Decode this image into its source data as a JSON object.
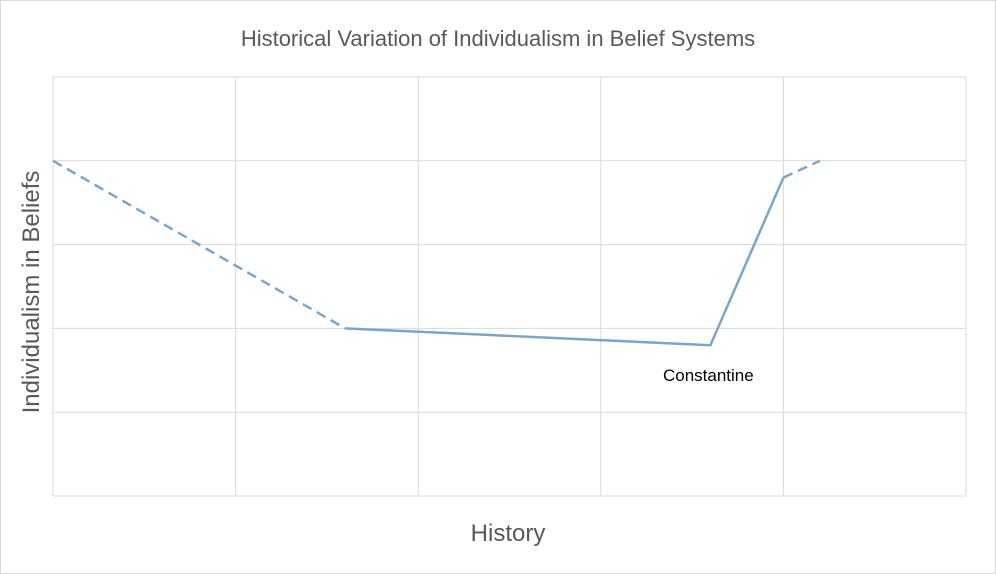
{
  "chart_data": {
    "type": "line",
    "title": "Historical Variation of Individualism in Belief Systems",
    "xlabel": "History",
    "ylabel": "Individualism in Beliefs",
    "xlim": [
      0,
      5
    ],
    "ylim": [
      0,
      5
    ],
    "grid": true,
    "series": [
      {
        "style": "dashed",
        "color": "#7aa6cc",
        "points": [
          [
            0,
            4
          ],
          [
            1.6,
            2
          ]
        ]
      },
      {
        "style": "solid",
        "color": "#7aa6cc",
        "points": [
          [
            1.6,
            2
          ],
          [
            3.6,
            1.8
          ],
          [
            4.0,
            3.8
          ]
        ]
      },
      {
        "style": "dashed",
        "color": "#7aa6cc",
        "points": [
          [
            4.0,
            3.8
          ],
          [
            4.2,
            4.0
          ]
        ]
      }
    ],
    "annotations": [
      {
        "text": "Constantine",
        "x": 3.6,
        "y": 1.8
      }
    ]
  }
}
